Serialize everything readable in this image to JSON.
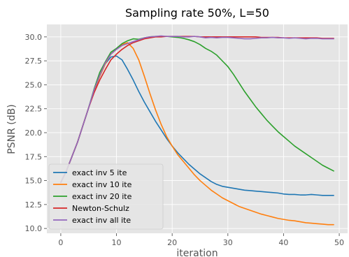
{
  "chart_data": {
    "type": "line",
    "title": "Sampling rate 50%, L=50",
    "xlabel": "iteration",
    "ylabel": "PSNR (dB)",
    "xlim": [
      -2.5,
      51.5
    ],
    "ylim": [
      9.5,
      31.3
    ],
    "x_ticks": [
      0,
      10,
      20,
      30,
      40,
      50
    ],
    "x_tick_labels": [
      "0",
      "10",
      "20",
      "30",
      "40",
      "50"
    ],
    "y_ticks": [
      10.0,
      12.5,
      15.0,
      17.5,
      20.0,
      22.5,
      25.0,
      27.5,
      30.0
    ],
    "y_tick_labels": [
      "10.0",
      "12.5",
      "15.0",
      "17.5",
      "20.0",
      "22.5",
      "25.0",
      "27.5",
      "30.0"
    ],
    "grid": true,
    "legend_position": "lower-left",
    "style": {
      "background": "#e5e5e5",
      "grid_color": "#ffffff"
    },
    "series": [
      {
        "name": "exact inv 5 ite",
        "color": "#1f77b4",
        "x": [
          0,
          1,
          2,
          3,
          4,
          5,
          6,
          7,
          8,
          9,
          10,
          11,
          12,
          13,
          14,
          15,
          16,
          17,
          18,
          19,
          20,
          21,
          22,
          23,
          24,
          25,
          26,
          27,
          28,
          29,
          30,
          31,
          32,
          33,
          34,
          35,
          36,
          37,
          38,
          39,
          40,
          41,
          42,
          43,
          44,
          45,
          46,
          47,
          48,
          49
        ],
        "values": [
          14.8,
          16.0,
          17.5,
          19.0,
          20.8,
          22.6,
          24.4,
          25.9,
          27.2,
          27.9,
          28.0,
          27.6,
          26.6,
          25.5,
          24.3,
          23.2,
          22.2,
          21.2,
          20.3,
          19.4,
          18.6,
          17.9,
          17.3,
          16.7,
          16.2,
          15.7,
          15.3,
          14.9,
          14.6,
          14.4,
          14.3,
          14.2,
          14.1,
          14.0,
          13.95,
          13.9,
          13.85,
          13.8,
          13.75,
          13.7,
          13.6,
          13.55,
          13.55,
          13.5,
          13.5,
          13.55,
          13.5,
          13.45,
          13.45,
          13.45
        ]
      },
      {
        "name": "exact inv 10 ite",
        "color": "#ff7f0e",
        "x": [
          0,
          1,
          2,
          3,
          4,
          5,
          6,
          7,
          8,
          9,
          10,
          11,
          12,
          13,
          14,
          15,
          16,
          17,
          18,
          19,
          20,
          21,
          22,
          23,
          24,
          25,
          26,
          27,
          28,
          29,
          30,
          31,
          32,
          33,
          34,
          35,
          36,
          37,
          38,
          39,
          40,
          41,
          42,
          43,
          44,
          45,
          46,
          47,
          48,
          49
        ],
        "values": [
          14.8,
          16.0,
          17.5,
          19.0,
          20.8,
          22.6,
          24.4,
          25.9,
          27.2,
          28.2,
          28.7,
          29.2,
          29.4,
          28.8,
          27.6,
          25.9,
          24.1,
          22.4,
          20.9,
          19.6,
          18.6,
          17.7,
          17.0,
          16.3,
          15.6,
          15.0,
          14.5,
          14.0,
          13.6,
          13.2,
          12.9,
          12.6,
          12.3,
          12.1,
          11.9,
          11.7,
          11.5,
          11.35,
          11.2,
          11.05,
          10.95,
          10.85,
          10.8,
          10.7,
          10.6,
          10.55,
          10.5,
          10.45,
          10.4,
          10.4
        ]
      },
      {
        "name": "exact inv 20 ite",
        "color": "#2ca02c",
        "x": [
          0,
          1,
          2,
          3,
          4,
          5,
          6,
          7,
          8,
          9,
          10,
          11,
          12,
          13,
          14,
          15,
          16,
          17,
          18,
          19,
          20,
          21,
          22,
          23,
          24,
          25,
          26,
          27,
          28,
          29,
          30,
          31,
          32,
          33,
          34,
          35,
          36,
          37,
          38,
          39,
          40,
          41,
          42,
          43,
          44,
          45,
          46,
          47,
          48,
          49
        ],
        "values": [
          14.8,
          16.0,
          17.5,
          19.0,
          20.8,
          22.6,
          24.6,
          26.3,
          27.4,
          28.4,
          28.8,
          29.3,
          29.6,
          29.8,
          29.75,
          29.9,
          30.0,
          30.05,
          30.05,
          30.05,
          30.0,
          29.95,
          29.85,
          29.7,
          29.5,
          29.2,
          28.8,
          28.5,
          28.1,
          27.5,
          26.9,
          26.1,
          25.2,
          24.3,
          23.5,
          22.7,
          22.0,
          21.3,
          20.7,
          20.1,
          19.6,
          19.1,
          18.6,
          18.2,
          17.8,
          17.4,
          17.0,
          16.6,
          16.3,
          16.0
        ]
      },
      {
        "name": "Newton-Schulz",
        "color": "#d62728",
        "x": [
          0,
          1,
          2,
          3,
          4,
          5,
          6,
          7,
          8,
          9,
          10,
          11,
          12,
          13,
          14,
          15,
          16,
          17,
          18,
          19,
          20,
          21,
          22,
          23,
          24,
          25,
          26,
          27,
          28,
          29,
          30,
          31,
          32,
          33,
          34,
          35,
          36,
          37,
          38,
          39,
          40,
          41,
          42,
          43,
          44,
          45,
          46,
          47,
          48,
          49
        ],
        "values": [
          14.8,
          16.0,
          17.5,
          19.0,
          20.8,
          22.6,
          24.2,
          25.5,
          26.6,
          27.6,
          28.2,
          28.7,
          29.1,
          29.4,
          29.6,
          29.8,
          29.9,
          30.0,
          30.0,
          30.05,
          30.05,
          30.05,
          30.05,
          30.05,
          30.05,
          30.0,
          30.0,
          30.0,
          30.0,
          30.0,
          30.0,
          30.0,
          30.0,
          30.0,
          30.0,
          30.0,
          29.95,
          29.95,
          29.95,
          29.95,
          29.9,
          29.9,
          29.9,
          29.9,
          29.9,
          29.9,
          29.9,
          29.85,
          29.85,
          29.85
        ]
      },
      {
        "name": "exact inv all ite",
        "color": "#9467bd",
        "x": [
          0,
          1,
          2,
          3,
          4,
          5,
          6,
          7,
          8,
          9,
          10,
          11,
          12,
          13,
          14,
          15,
          16,
          17,
          18,
          19,
          20,
          21,
          22,
          23,
          24,
          25,
          26,
          27,
          28,
          29,
          30,
          31,
          32,
          33,
          34,
          35,
          36,
          37,
          38,
          39,
          40,
          41,
          42,
          43,
          44,
          45,
          46,
          47,
          48,
          49
        ],
        "values": [
          14.8,
          16.0,
          17.5,
          19.0,
          20.8,
          22.6,
          24.5,
          26.0,
          27.3,
          28.2,
          28.7,
          29.1,
          29.3,
          29.5,
          29.7,
          29.9,
          30.0,
          30.05,
          30.1,
          30.05,
          30.05,
          30.05,
          30.0,
          30.0,
          30.05,
          30.0,
          29.9,
          29.95,
          29.9,
          29.95,
          29.95,
          29.9,
          29.85,
          29.8,
          29.8,
          29.85,
          29.9,
          29.9,
          29.95,
          29.9,
          29.9,
          29.85,
          29.9,
          29.85,
          29.8,
          29.85,
          29.85,
          29.8,
          29.8,
          29.8
        ]
      }
    ]
  }
}
